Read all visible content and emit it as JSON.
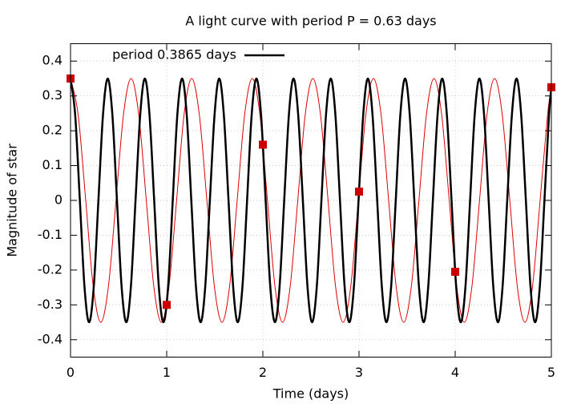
{
  "chart_data": {
    "type": "line",
    "title": "A light curve with period P = 0.63 days",
    "x_label": "Time (days)",
    "y_label": "Magnitude of star",
    "xlim": [
      0,
      5
    ],
    "xticks": [
      0,
      1,
      2,
      3,
      4,
      5
    ],
    "ylim": [
      -0.45,
      0.45
    ],
    "yticks": [
      -0.4,
      -0.3,
      -0.2,
      -0.1,
      0,
      0.1,
      0.2,
      0.3,
      0.4
    ],
    "grid": true,
    "legend": "top-left",
    "series": [
      {
        "color": "#e00000",
        "width": 1,
        "mode": "lines",
        "x": [
          0,
          0.079,
          0.158,
          0.236,
          0.315,
          0.394,
          0.473,
          0.551,
          0.63,
          0.709,
          0.788,
          0.866,
          0.945,
          1.024,
          1.103,
          1.181,
          1.26,
          1.339,
          1.418,
          1.496,
          1.575,
          1.654,
          1.733,
          1.811,
          1.89,
          1.969,
          2.048,
          2.126,
          2.205,
          2.284,
          2.363,
          2.441,
          2.52,
          2.599,
          2.678,
          2.756,
          2.835,
          2.914,
          2.993,
          3.071,
          3.15,
          3.229,
          3.308,
          3.386,
          3.465,
          3.544,
          3.623,
          3.701,
          3.78,
          3.859,
          3.938,
          4.016,
          4.095,
          4.174,
          4.253,
          4.331,
          4.41,
          4.489,
          4.568,
          4.646,
          4.725,
          4.804,
          4.883,
          4.961,
          5
        ],
        "values": [
          0.35,
          0.247,
          0,
          -0.247,
          -0.35,
          -0.247,
          0,
          0.247,
          0.35,
          0.247,
          0,
          -0.247,
          -0.35,
          -0.247,
          0,
          0.247,
          0.35,
          0.247,
          0,
          -0.247,
          -0.35,
          -0.247,
          0,
          0.247,
          0.35,
          0.247,
          0,
          -0.247,
          -0.35,
          -0.247,
          0,
          0.247,
          0.35,
          0.247,
          0,
          -0.247,
          -0.35,
          -0.247,
          0,
          0.247,
          0.35,
          0.247,
          0,
          -0.247,
          -0.35,
          -0.247,
          0,
          0.247,
          0.35,
          0.247,
          0,
          -0.247,
          -0.35,
          -0.247,
          0,
          0.247,
          0.35,
          0.247,
          0,
          -0.247,
          -0.35,
          -0.247,
          0,
          0.247,
          0.323
        ]
      },
      {
        "name": "period 0.3865 days",
        "color": "#000000",
        "width": 2.5,
        "mode": "lines",
        "x": [
          0,
          0.048,
          0.097,
          0.145,
          0.193,
          0.242,
          0.29,
          0.338,
          0.387,
          0.435,
          0.483,
          0.531,
          0.58,
          0.628,
          0.676,
          0.725,
          0.773,
          0.821,
          0.87,
          0.918,
          0.966,
          1.015,
          1.063,
          1.111,
          1.16,
          1.208,
          1.256,
          1.304,
          1.353,
          1.401,
          1.449,
          1.498,
          1.546,
          1.594,
          1.643,
          1.691,
          1.739,
          1.788,
          1.836,
          1.884,
          1.933,
          1.981,
          2.029,
          2.077,
          2.126,
          2.174,
          2.222,
          2.271,
          2.319,
          2.367,
          2.416,
          2.464,
          2.512,
          2.561,
          2.609,
          2.657,
          2.706,
          2.754,
          2.802,
          2.85,
          2.899,
          2.947,
          2.995,
          3.044,
          3.092,
          3.14,
          3.189,
          3.237,
          3.285,
          3.334,
          3.382,
          3.43,
          3.479,
          3.527,
          3.575,
          3.623,
          3.672,
          3.72,
          3.768,
          3.817,
          3.865,
          3.913,
          3.962,
          4.01,
          4.058,
          4.107,
          4.155,
          4.203,
          4.252,
          4.3,
          4.348,
          4.396,
          4.445,
          4.493,
          4.541,
          4.59,
          4.638,
          4.686,
          4.735,
          4.783,
          4.831,
          4.88,
          4.928,
          4.976,
          5
        ],
        "values": [
          0.35,
          0.247,
          0,
          -0.247,
          -0.35,
          -0.247,
          0,
          0.247,
          0.35,
          0.247,
          0,
          -0.247,
          -0.35,
          -0.247,
          0,
          0.247,
          0.35,
          0.247,
          0,
          -0.247,
          -0.35,
          -0.247,
          0,
          0.247,
          0.35,
          0.247,
          0,
          -0.247,
          -0.35,
          -0.247,
          0,
          0.247,
          0.35,
          0.247,
          0,
          -0.247,
          -0.35,
          -0.247,
          0,
          0.247,
          0.35,
          0.247,
          0,
          -0.247,
          -0.35,
          -0.247,
          0,
          0.247,
          0.35,
          0.247,
          0,
          -0.247,
          -0.35,
          -0.247,
          0,
          0.247,
          0.35,
          0.247,
          0,
          -0.247,
          -0.35,
          -0.247,
          0,
          0.247,
          0.35,
          0.247,
          0,
          -0.247,
          -0.35,
          -0.247,
          0,
          0.247,
          0.35,
          0.247,
          0,
          -0.247,
          -0.35,
          -0.247,
          0,
          0.247,
          0.35,
          0.247,
          0,
          -0.247,
          -0.35,
          -0.247,
          0,
          0.247,
          0.35,
          0.247,
          0,
          -0.247,
          -0.35,
          -0.247,
          0,
          0.247,
          0.35,
          0.247,
          0,
          -0.247,
          -0.35,
          -0.247,
          0,
          0.247,
          0.323
        ]
      },
      {
        "color": "#cc0000",
        "mode": "markers",
        "marker": "square",
        "x": [
          0,
          1,
          2,
          3,
          4,
          5
        ],
        "values": [
          0.35,
          -0.3,
          0.16,
          0.025,
          -0.205,
          0.325
        ]
      }
    ]
  }
}
